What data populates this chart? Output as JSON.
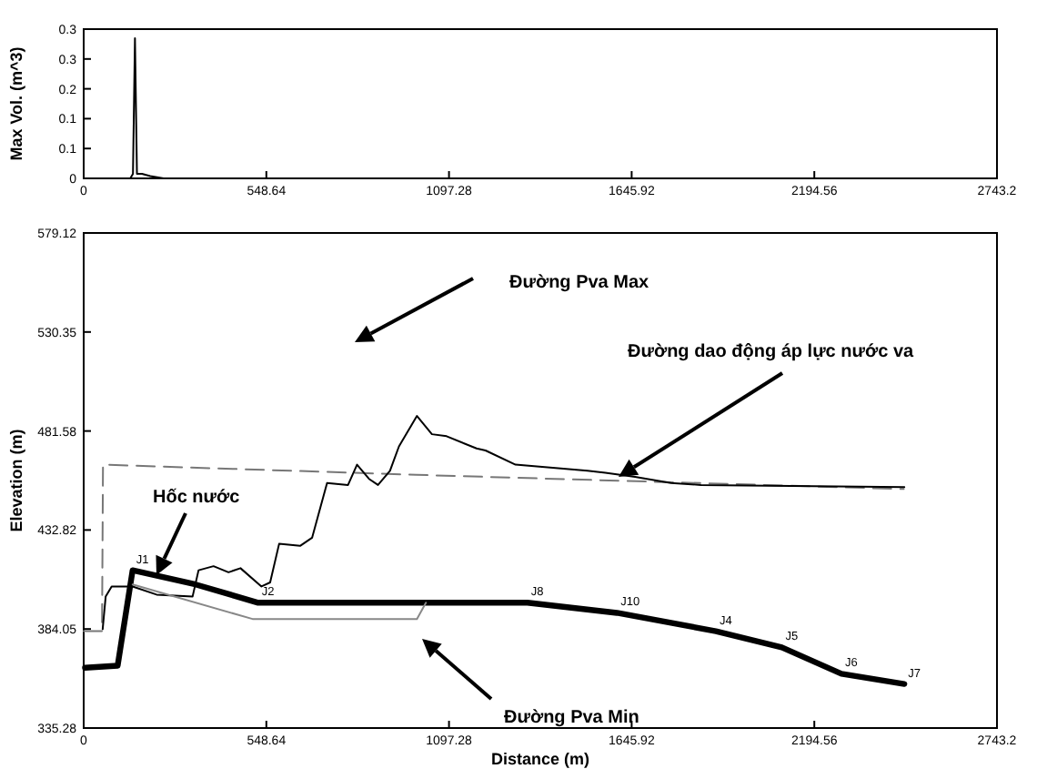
{
  "chart_data": [
    {
      "type": "line",
      "ylabel": "Max Vol. (m^3)",
      "xlim": [
        0,
        2743.2
      ],
      "xticks": [
        0,
        548.64,
        1097.28,
        1645.92,
        2194.56,
        2743.2
      ],
      "ylim": [
        0,
        0.33
      ],
      "yticks": [
        0,
        {
          "value": 0.066,
          "label": "0.1"
        },
        {
          "value": 0.132,
          "label": "0.1"
        },
        {
          "value": 0.198,
          "label": "0.2"
        },
        {
          "value": 0.264,
          "label": "0.3"
        },
        {
          "value": 0.33,
          "label": "0.3"
        }
      ],
      "grid": false,
      "series": [
        {
          "color": "#000000",
          "x": [
            0,
            140,
            148,
            154,
            160,
            175,
            200,
            240,
            2743.2
          ],
          "values": [
            0,
            0,
            0.01,
            0.31,
            0.01,
            0.01,
            0.005,
            0,
            0
          ]
        }
      ]
    },
    {
      "type": "line",
      "xlabel": "Distance (m)",
      "ylabel": "Elevation (m)",
      "xlim": [
        0,
        2743.2
      ],
      "xticks": [
        0,
        548.64,
        1097.28,
        1645.92,
        2194.56,
        2743.2
      ],
      "ylim": [
        335.28,
        579.12
      ],
      "yticks": [
        335.28,
        384.05,
        432.82,
        481.58,
        530.35,
        579.12
      ],
      "grid": false,
      "series": [
        {
          "color": "#777777",
          "line_style": "dashed",
          "x": [
            0,
            55,
            58,
            1000,
            2463
          ],
          "values": [
            383,
            383,
            465,
            460,
            453
          ]
        },
        {
          "color": "#000000",
          "line_style": "solid",
          "x": [
            57,
            66,
            84,
            147,
            219,
            327,
            345,
            390,
            435,
            471,
            534,
            560,
            587,
            650,
            686,
            731,
            794,
            821,
            857,
            884,
            920,
            947,
            1001,
            1046,
            1090,
            1180,
            1207,
            1297,
            1369,
            1441,
            1513,
            1567,
            1656,
            1764,
            1854,
            2465
          ],
          "values": [
            384,
            400,
            405,
            405,
            401,
            400,
            413,
            415,
            412,
            414,
            405,
            407,
            426,
            425,
            429,
            456,
            455,
            465,
            458,
            455,
            462,
            474,
            489,
            480,
            479,
            473,
            472,
            465,
            464,
            463,
            462,
            461,
            459,
            456,
            455,
            454
          ]
        },
        {
          "color": "#000000",
          "line_style": "solid",
          "x": [
            4,
            102,
            147,
            336,
            524,
            1009,
            1333,
            1602,
            1899,
            2097,
            2276,
            2465
          ],
          "values": [
            365,
            366,
            413,
            406,
            397,
            397,
            397,
            392,
            383,
            375,
            362,
            357
          ]
        },
        {
          "color": "#888888",
          "line_style": "solid",
          "x": [
            147,
            507,
            1001,
            1028
          ],
          "values": [
            406,
            389,
            389,
            397
          ]
        }
      ],
      "annotations": [
        "Đường Pva Max",
        "Đường dao động áp lực nước va",
        "Hốc nước",
        "Đường Pva Min",
        {
          "text": "J1",
          "x": 147,
          "y": 413
        },
        {
          "text": "J2",
          "x": 524,
          "y": 397
        },
        {
          "text": "J8",
          "x": 1333,
          "y": 397
        },
        {
          "text": "J10",
          "x": 1602,
          "y": 392
        },
        {
          "text": "J4",
          "x": 1899,
          "y": 383
        },
        {
          "text": "J5",
          "x": 2097,
          "y": 375
        },
        {
          "text": "J6",
          "x": 2276,
          "y": 362
        },
        {
          "text": "J7",
          "x": 2465,
          "y": 357
        }
      ]
    }
  ]
}
